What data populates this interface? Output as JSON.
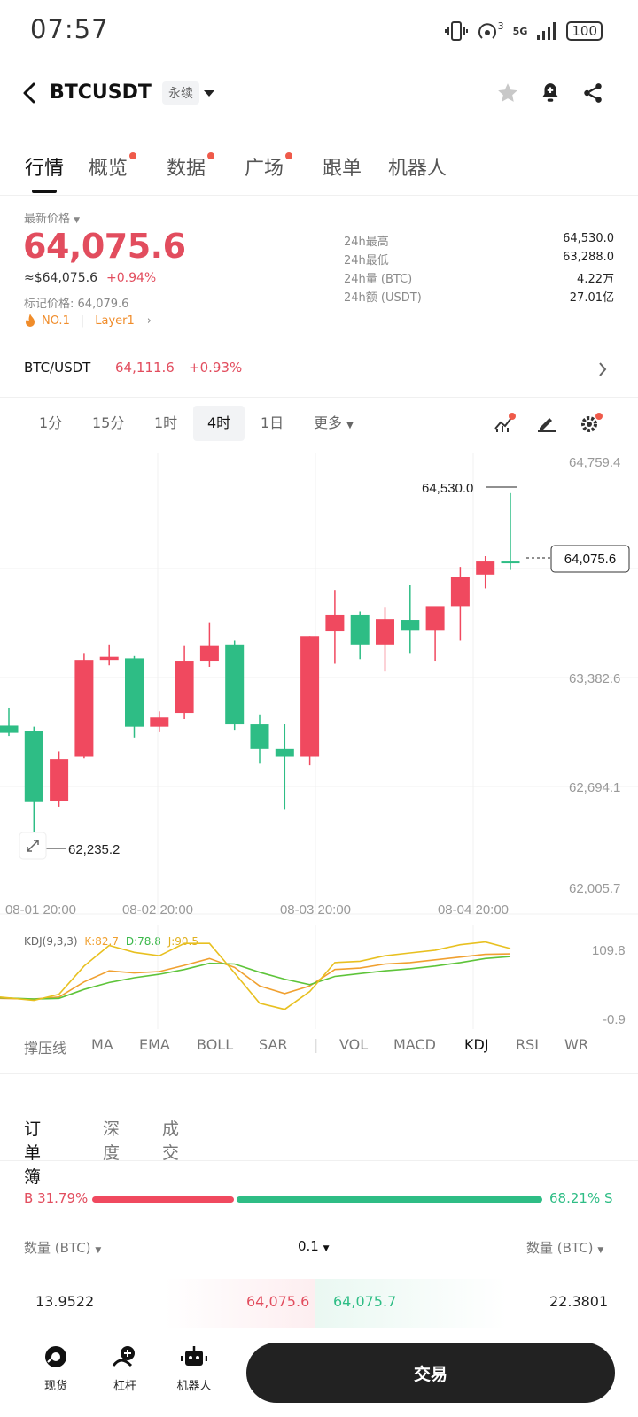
{
  "status": {
    "time": "07:57",
    "signal": "5G",
    "sim_indicator": "3",
    "battery": "100"
  },
  "header": {
    "symbol": "BTCUSDT",
    "contract_type": "永续"
  },
  "tabs": [
    {
      "label": "行情",
      "active": true,
      "dot": false
    },
    {
      "label": "概览",
      "active": false,
      "dot": true
    },
    {
      "label": "数据",
      "active": false,
      "dot": true
    },
    {
      "label": "广场",
      "active": false,
      "dot": true
    },
    {
      "label": "跟单",
      "active": false,
      "dot": false
    },
    {
      "label": "机器人",
      "active": false,
      "dot": false
    }
  ],
  "price": {
    "label": "最新价格",
    "last": "64,075.6",
    "usd_equiv": "≈$64,075.6",
    "change": "+0.94%",
    "mark_label": "标记价格:",
    "mark_value": "64,079.6",
    "rank": "NO.1",
    "category": "Layer1"
  },
  "stats": [
    {
      "label": "24h最高",
      "value": "64,530.0"
    },
    {
      "label": "24h最低",
      "value": "63,288.0"
    },
    {
      "label": "24h量 (BTC)",
      "value": "4.22万"
    },
    {
      "label": "24h额 (USDT)",
      "value": "27.01亿"
    }
  ],
  "spot_pair": {
    "name": "BTC/USDT",
    "price": "64,111.6",
    "change": "+0.93%"
  },
  "intervals": [
    {
      "label": "1分",
      "active": false
    },
    {
      "label": "15分",
      "active": false
    },
    {
      "label": "1时",
      "active": false
    },
    {
      "label": "4时",
      "active": true
    },
    {
      "label": "1日",
      "active": false
    },
    {
      "label": "更多",
      "active": false
    }
  ],
  "chart_data": {
    "type": "candlestick",
    "y_axis_labels": [
      "64,759.4",
      "63,382.6",
      "62,694.1",
      "62,005.7"
    ],
    "x_axis_labels": [
      "08-01 20:00",
      "08-02 20:00",
      "08-03 20:00",
      "08-04 20:00"
    ],
    "ylim": [
      62005.7,
      64759.4
    ],
    "high_label": "64,530.0",
    "low_label": "62,235.2",
    "current_price": "64,075.6",
    "colors": {
      "up": "#f0495f",
      "down": "#2ebd85"
    },
    "candles": [
      {
        "o": 63017,
        "h": 63135,
        "l": 62950,
        "c": 62970
      },
      {
        "o": 62985,
        "h": 63010,
        "l": 62240,
        "c": 62520
      },
      {
        "o": 62525,
        "h": 62850,
        "l": 62490,
        "c": 62800
      },
      {
        "o": 62815,
        "h": 63490,
        "l": 62805,
        "c": 63445
      },
      {
        "o": 63445,
        "h": 63545,
        "l": 63410,
        "c": 63465
      },
      {
        "o": 63455,
        "h": 63470,
        "l": 62940,
        "c": 63010
      },
      {
        "o": 63010,
        "h": 63110,
        "l": 62980,
        "c": 63070
      },
      {
        "o": 63100,
        "h": 63540,
        "l": 63060,
        "c": 63440
      },
      {
        "o": 63440,
        "h": 63690,
        "l": 63400,
        "c": 63540
      },
      {
        "o": 63545,
        "h": 63570,
        "l": 62990,
        "c": 63025
      },
      {
        "o": 63025,
        "h": 63090,
        "l": 62770,
        "c": 62865
      },
      {
        "o": 62865,
        "h": 63030,
        "l": 62470,
        "c": 62815
      },
      {
        "o": 62815,
        "h": 63600,
        "l": 62760,
        "c": 63600
      },
      {
        "o": 63630,
        "h": 63900,
        "l": 63420,
        "c": 63740
      },
      {
        "o": 63740,
        "h": 63760,
        "l": 63450,
        "c": 63545
      },
      {
        "o": 63545,
        "h": 63790,
        "l": 63370,
        "c": 63710
      },
      {
        "o": 63705,
        "h": 63930,
        "l": 63490,
        "c": 63640
      },
      {
        "o": 63640,
        "h": 63780,
        "l": 63440,
        "c": 63795
      },
      {
        "o": 63795,
        "h": 64050,
        "l": 63570,
        "c": 63985
      },
      {
        "o": 64000,
        "h": 64120,
        "l": 63910,
        "c": 64085
      },
      {
        "o": 64085,
        "h": 64530,
        "l": 64030,
        "c": 64075
      }
    ]
  },
  "kdj": {
    "title": "KDJ(9,3,3)",
    "k_label": "K:82.7",
    "d_label": "D:78.8",
    "j_label": "J:90.5",
    "axis_top": "109.8",
    "axis_bottom": "-0.9",
    "ylim": [
      -0.9,
      109.8
    ],
    "k": [
      18,
      17,
      20,
      42,
      58,
      55,
      57,
      66,
      76,
      63,
      36,
      25,
      36,
      60,
      62,
      68,
      70,
      74,
      78,
      82,
      82.7
    ],
    "d": [
      19,
      17,
      18,
      31,
      41,
      48,
      53,
      60,
      69,
      68,
      56,
      46,
      38,
      50,
      54,
      58,
      61,
      65,
      70,
      76,
      78.8
    ],
    "j": [
      20,
      15,
      24,
      65,
      95,
      85,
      80,
      98,
      98,
      55,
      11,
      2,
      28,
      70,
      72,
      80,
      84,
      88,
      96,
      100,
      90.5
    ]
  },
  "indicators": [
    "撑压线",
    "MA",
    "EMA",
    "BOLL",
    "SAR",
    "VOL",
    "MACD",
    "KDJ",
    "RSI",
    "WR"
  ],
  "active_indicator": "KDJ",
  "orderbook": {
    "tabs": [
      "订单簿",
      "深度",
      "成交"
    ],
    "buy_ratio": "31.79%",
    "sell_ratio": "68.21%",
    "buy_fraction": 0.3179,
    "buy_marker": "B",
    "sell_marker": "S",
    "qty_label_left": "数量 (BTC)",
    "precision": "0.1",
    "qty_label_right": "数量 (BTC)",
    "row": {
      "bid_qty": "13.9522",
      "bid_price": "64,075.6",
      "ask_price": "64,075.7",
      "ask_qty": "22.3801"
    }
  },
  "bottom_nav": [
    {
      "label": "现货",
      "icon": "spot-icon"
    },
    {
      "label": "杠杆",
      "icon": "margin-icon"
    },
    {
      "label": "机器人",
      "icon": "robot-icon"
    }
  ],
  "trade_button": "交易"
}
